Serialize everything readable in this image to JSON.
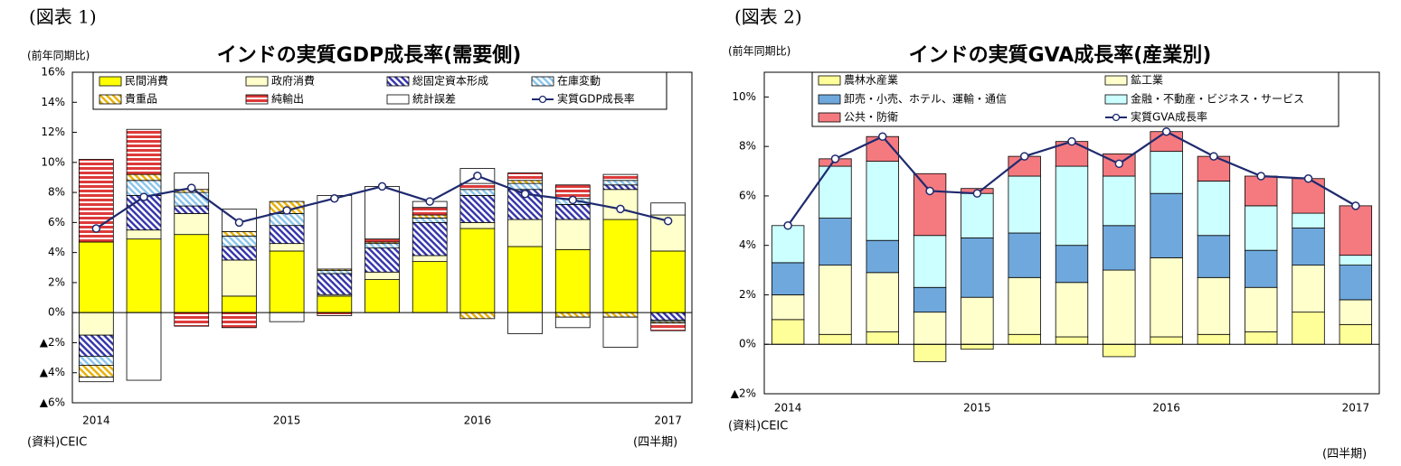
{
  "chart_data": [
    {
      "type": "bar",
      "stacked": true,
      "label": "(図表 1)",
      "title": "インドの実質GDP成長率(需要側)",
      "y_unit_label": "(前年同期比)",
      "source": "(資料)CEIC",
      "x_unit_label": "(四半期)",
      "categories": [
        "2014",
        null,
        null,
        null,
        "2015",
        null,
        null,
        null,
        "2016",
        null,
        null,
        null,
        "2017"
      ],
      "ylim": [
        -6,
        16
      ],
      "yticks": [
        {
          "value": -6,
          "label": "▲6%"
        },
        {
          "value": -4,
          "label": "▲4%"
        },
        {
          "value": -2,
          "label": "▲2%"
        },
        {
          "value": 0,
          "label": "0%"
        },
        {
          "value": 2,
          "label": "2%"
        },
        {
          "value": 4,
          "label": "4%"
        },
        {
          "value": 6,
          "label": "6%"
        },
        {
          "value": 8,
          "label": "8%"
        },
        {
          "value": 10,
          "label": "10%"
        },
        {
          "value": 12,
          "label": "12%"
        },
        {
          "value": 14,
          "label": "14%"
        },
        {
          "value": 16,
          "label": "16%"
        }
      ],
      "series": [
        {
          "name": "民間消費",
          "color": "#ffff00",
          "values": [
            4.7,
            4.9,
            5.2,
            1.1,
            4.1,
            1.1,
            2.2,
            3.4,
            5.6,
            4.4,
            4.2,
            6.2,
            4.1
          ]
        },
        {
          "name": "政府消費",
          "color": "#ffffcc",
          "values": [
            -1.5,
            0.6,
            1.4,
            2.4,
            0.5,
            0.1,
            0.5,
            0.4,
            0.4,
            1.8,
            2.0,
            2.0,
            2.4
          ]
        },
        {
          "name": "総固定資本形成",
          "color": "#3333aa",
          "hatch": "diagonal",
          "values": [
            -1.4,
            2.3,
            0.5,
            0.9,
            1.2,
            1.4,
            1.6,
            2.2,
            1.8,
            2.0,
            1.0,
            0.3,
            -0.5
          ]
        },
        {
          "name": "在庫変動",
          "color": "#88c4ec",
          "hatch": "diagonal",
          "values": [
            -0.6,
            1.0,
            0.9,
            0.7,
            0.8,
            0.2,
            0.3,
            0.3,
            0.4,
            0.4,
            0.4,
            0.3,
            -0.1
          ]
        },
        {
          "name": "貴重品",
          "color": "#e6b000",
          "hatch": "diagonal",
          "values": [
            -0.8,
            0.4,
            0.2,
            0.3,
            0.8,
            0.1,
            0.1,
            0.2,
            -0.4,
            0.2,
            -0.3,
            -0.3,
            -0.1
          ]
        },
        {
          "name": "純輸出",
          "color": "#dd3a3a",
          "hatch": "horizontal",
          "values": [
            5.5,
            3.0,
            -0.9,
            -1.0,
            0,
            -0.2,
            0.2,
            0.5,
            0.4,
            0.5,
            0.9,
            0.4,
            -0.5
          ]
        },
        {
          "name": "統計誤差",
          "color": "#ffffff",
          "values": [
            -0.3,
            -4.5,
            1.1,
            1.5,
            -0.6,
            4.9,
            3.5,
            0.4,
            1.0,
            -1.4,
            -0.7,
            -2.0,
            0.8
          ]
        },
        {
          "name": "実質GDP成長率",
          "type": "line",
          "color": "#1f2a6e",
          "values": [
            5.6,
            7.7,
            8.3,
            6.0,
            6.8,
            7.6,
            8.4,
            7.4,
            9.1,
            7.9,
            7.5,
            6.9,
            6.1
          ]
        }
      ]
    },
    {
      "type": "bar",
      "stacked": true,
      "label": "(図表 2)",
      "title": "インドの実質GVA成長率(産業別)",
      "y_unit_label": "(前年同期比)",
      "source": "(資料)CEIC",
      "x_unit_label": "(四半期)",
      "categories": [
        "2014",
        null,
        null,
        null,
        "2015",
        null,
        null,
        null,
        "2016",
        null,
        null,
        null,
        "2017"
      ],
      "ylim": [
        -2,
        11
      ],
      "yticks": [
        {
          "value": -2,
          "label": "▲2%"
        },
        {
          "value": 0,
          "label": "0%"
        },
        {
          "value": 2,
          "label": "2%"
        },
        {
          "value": 4,
          "label": "4%"
        },
        {
          "value": 6,
          "label": "6%"
        },
        {
          "value": 8,
          "label": "8%"
        },
        {
          "value": 10,
          "label": "10%"
        }
      ],
      "series": [
        {
          "name": "農林水産業",
          "color": "#ffff99",
          "values": [
            1.0,
            0.4,
            0.5,
            -0.7,
            -0.2,
            0.4,
            0.3,
            -0.5,
            0.3,
            0.4,
            0.5,
            1.3,
            0.8
          ]
        },
        {
          "name": "鉱工業",
          "color": "#ffffcc",
          "values": [
            1.0,
            2.8,
            2.4,
            1.3,
            1.9,
            2.3,
            2.2,
            3.0,
            3.2,
            2.3,
            1.8,
            1.9,
            1.0
          ]
        },
        {
          "name": "卸売・小売、ホテル、運輸・通信",
          "color": "#6fa8dc",
          "values": [
            1.3,
            1.9,
            1.3,
            1.0,
            2.4,
            1.8,
            1.5,
            1.8,
            2.6,
            1.7,
            1.5,
            1.5,
            1.4
          ]
        },
        {
          "name": "金融・不動産・ビジネス・サービス",
          "color": "#ccffff",
          "values": [
            1.5,
            2.1,
            3.2,
            2.1,
            1.8,
            2.3,
            3.2,
            2.0,
            1.7,
            2.2,
            1.8,
            0.6,
            0.4
          ]
        },
        {
          "name": "公共・防衛",
          "color": "#f47a80",
          "values": [
            0,
            0.3,
            1.0,
            2.5,
            0.2,
            0.8,
            1.0,
            0.9,
            0.8,
            1.0,
            1.2,
            1.4,
            2.0
          ]
        },
        {
          "name": "実質GVA成長率",
          "type": "line",
          "color": "#1f2a6e",
          "values": [
            4.8,
            7.5,
            8.4,
            6.2,
            6.1,
            7.6,
            8.2,
            7.3,
            8.6,
            7.6,
            6.8,
            6.7,
            5.6
          ]
        }
      ]
    }
  ]
}
